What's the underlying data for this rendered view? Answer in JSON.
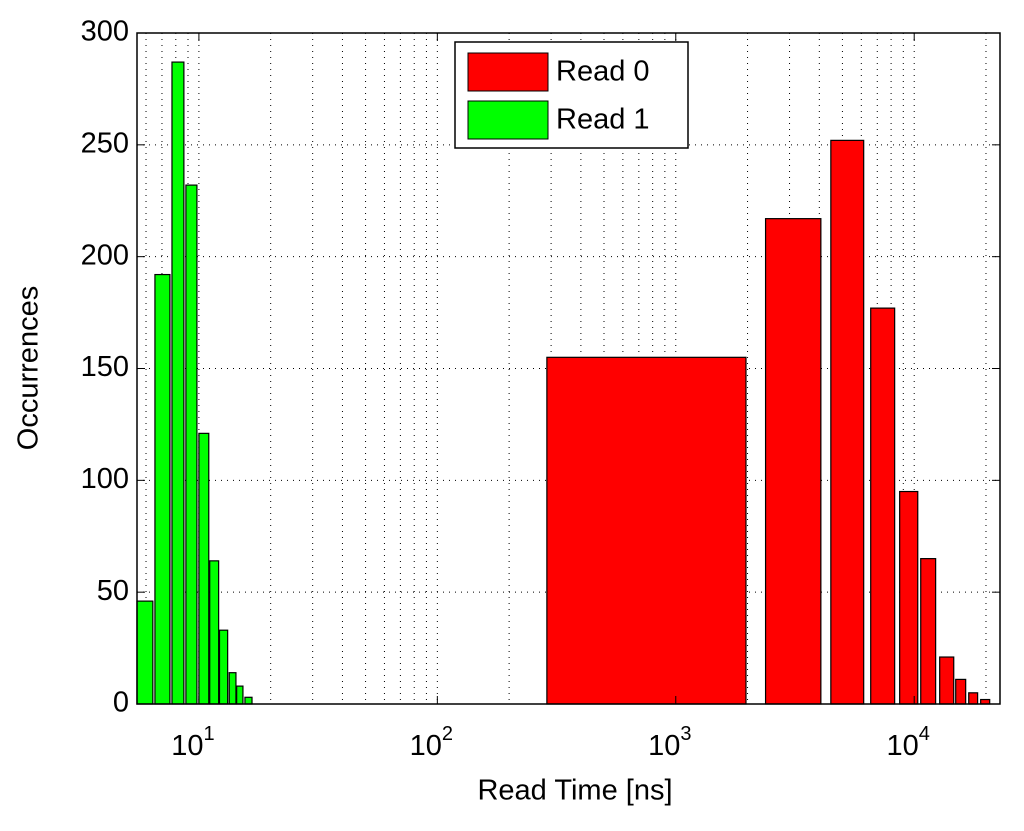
{
  "chart_data": {
    "type": "histogram",
    "xlabel": "Read Time [ns]",
    "ylabel": "Occurrences",
    "xscale": "log",
    "grid": true,
    "legend": "upper center",
    "xlim": [
      5.5,
      22900
    ],
    "ylim": [
      0,
      300
    ],
    "xticks": [
      {
        "value": 10,
        "label": "10",
        "exponent": "1"
      },
      {
        "value": 100,
        "label": "10",
        "exponent": "2"
      },
      {
        "value": 1000,
        "label": "10",
        "exponent": "3"
      },
      {
        "value": 10000,
        "label": "10",
        "exponent": "4"
      }
    ],
    "xminorticks": [
      6,
      7,
      8,
      9,
      20,
      30,
      40,
      50,
      60,
      70,
      80,
      90,
      200,
      300,
      400,
      500,
      600,
      700,
      800,
      900,
      2000,
      3000,
      4000,
      5000,
      6000,
      7000,
      8000,
      9000,
      20000
    ],
    "yticks": [
      0,
      50,
      100,
      150,
      200,
      250,
      300
    ],
    "series": [
      {
        "name": "Read 0",
        "color": "#ff0000",
        "x_start": [
          288,
          2380,
          4470,
          6570,
          8690,
          10650,
          12790,
          14930,
          16930,
          19000
        ],
        "x_end": [
          1970,
          4060,
          6140,
          8280,
          10350,
          12300,
          14650,
          16440,
          18450,
          20730
        ],
        "values": [
          155,
          217,
          252,
          177,
          95,
          65,
          21,
          11,
          5,
          2
        ]
      },
      {
        "name": "Read 1",
        "color": "#00ff00",
        "x_start": [
          5.5,
          6.54,
          7.71,
          8.82,
          10,
          11.1,
          12.2,
          13.4,
          14.4,
          15.6
        ],
        "x_end": [
          6.41,
          7.56,
          8.65,
          9.81,
          11.0,
          12.1,
          13.2,
          14.3,
          15.3,
          16.7
        ],
        "values": [
          46,
          192,
          287,
          232,
          121,
          64,
          33,
          14,
          8,
          3
        ]
      }
    ]
  }
}
